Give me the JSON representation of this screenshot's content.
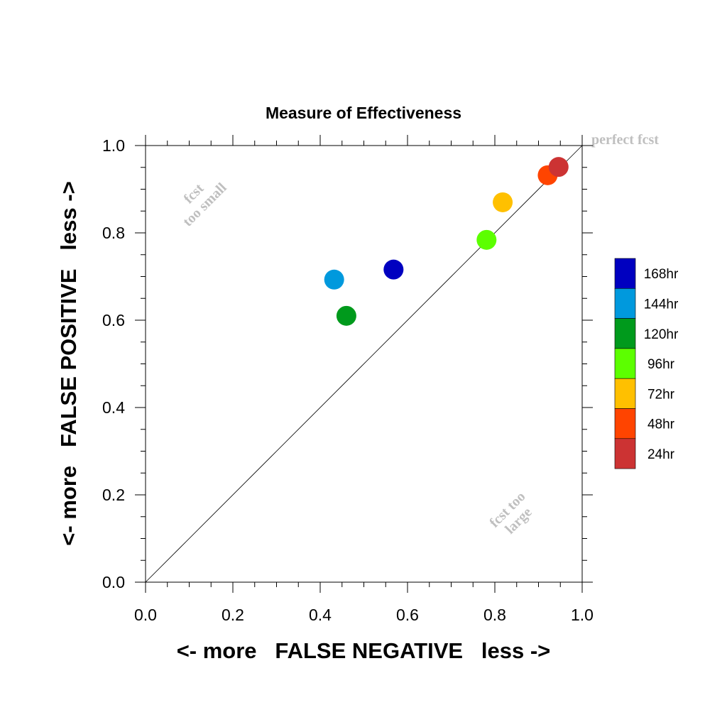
{
  "chart_data": {
    "type": "scatter",
    "title": "Measure of Effectiveness",
    "xlabel": "<- more   FALSE NEGATIVE   less ->",
    "ylabel": "<- more   FALSE POSITIVE   less ->",
    "xlim": [
      0.0,
      1.0
    ],
    "ylim": [
      0.0,
      1.0
    ],
    "x_ticks": [
      "0.0",
      "0.2",
      "0.4",
      "0.6",
      "0.8",
      "1.0"
    ],
    "y_ticks": [
      "0.0",
      "0.2",
      "0.4",
      "0.6",
      "0.8",
      "1.0"
    ],
    "grid": false,
    "diagonal_reference_line": true,
    "annotations": {
      "top_left": [
        "fcst",
        "too small"
      ],
      "bottom_right": [
        "fcst too",
        "large"
      ],
      "top_right": "perfect fcst"
    },
    "annotation_color": "#bfbfbf",
    "legend_position": "right",
    "series": [
      {
        "name": "168hr",
        "color": "#0000c0",
        "x": 0.568,
        "y": 0.716
      },
      {
        "name": "144hr",
        "color": "#0099dd",
        "x": 0.432,
        "y": 0.693
      },
      {
        "name": "120hr",
        "color": "#009a1c",
        "x": 0.46,
        "y": 0.61
      },
      {
        "name": "96hr",
        "color": "#5cff00",
        "x": 0.781,
        "y": 0.784
      },
      {
        "name": "72hr",
        "color": "#ffc000",
        "x": 0.818,
        "y": 0.87
      },
      {
        "name": "48hr",
        "color": "#ff4400",
        "x": 0.921,
        "y": 0.932
      },
      {
        "name": "24hr",
        "color": "#cc3333",
        "x": 0.946,
        "y": 0.951
      }
    ]
  }
}
